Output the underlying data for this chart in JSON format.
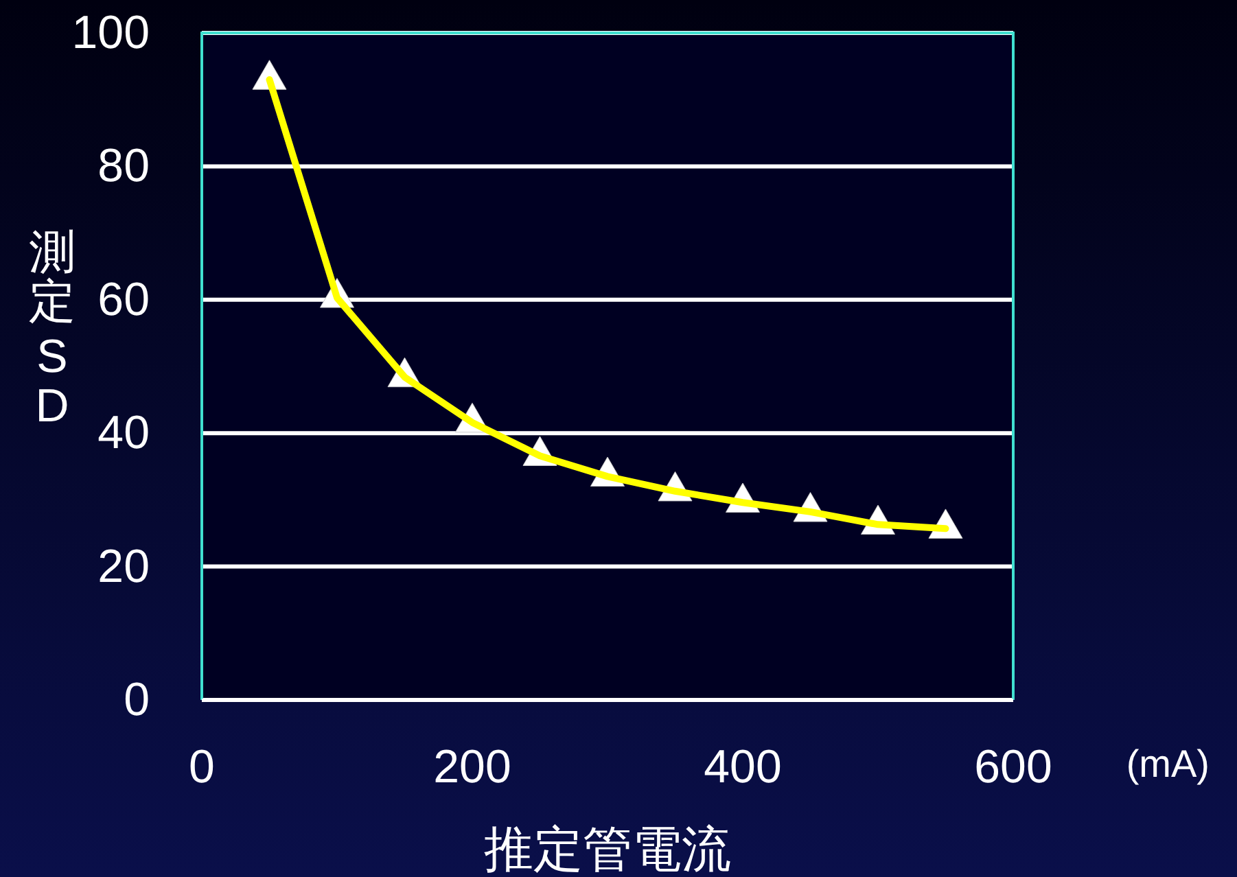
{
  "chart_data": {
    "type": "line",
    "xlabel": "推定管電流",
    "ylabel": "測定SD",
    "annotations": [
      "(mA)"
    ],
    "x": [
      50,
      100,
      150,
      200,
      250,
      300,
      350,
      400,
      450,
      500,
      550
    ],
    "series": [
      {
        "color": "#ffff00",
        "values": [
          93,
          60.3,
          48.4,
          41.6,
          36.6,
          33.5,
          31.3,
          29.6,
          28.2,
          26.3,
          25.7
        ]
      }
    ],
    "xlim": [
      0,
      600
    ],
    "xticks": [
      0,
      200,
      400,
      600
    ],
    "ylim": [
      0,
      100
    ],
    "yticks": [
      0,
      20,
      40,
      60,
      80,
      100
    ],
    "grid": "y",
    "marker": "triangle",
    "line_style": "solid"
  }
}
